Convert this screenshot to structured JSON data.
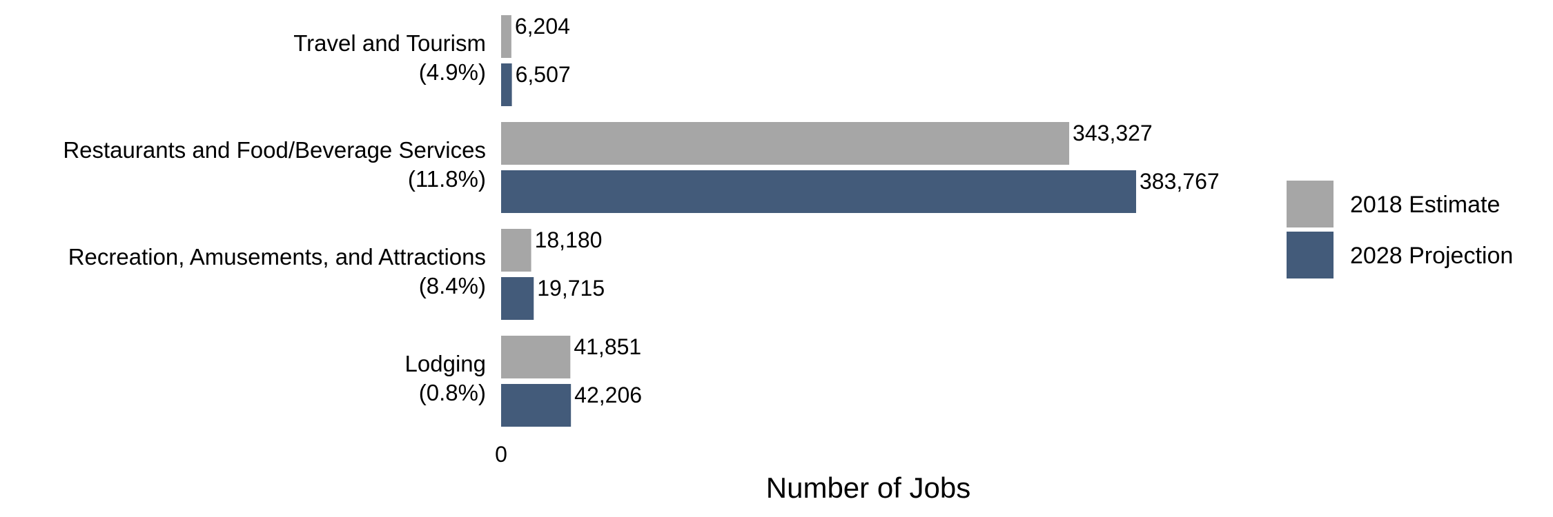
{
  "chart_data": {
    "type": "bar",
    "orientation": "horizontal",
    "categories": [
      [
        "Travel and Tourism",
        "(4.9%)"
      ],
      [
        "Restaurants and Food/Beverage Services",
        "(11.8%)"
      ],
      [
        "Recreation, Amusements, and Attractions",
        "(8.4%)"
      ],
      [
        "Lodging",
        "(0.8%)"
      ]
    ],
    "series": [
      {
        "name": "2018 Estimate",
        "color": "#a6a6a6",
        "values": [
          6204,
          343327,
          18180,
          41851
        ],
        "labels": [
          "6,204",
          "343,327",
          "18,180",
          "41,851"
        ]
      },
      {
        "name": "2028 Projection",
        "color": "#435b7a",
        "values": [
          6507,
          383767,
          19715,
          42206
        ],
        "labels": [
          "6,507",
          "383,767",
          "19,715",
          "42,206"
        ]
      }
    ],
    "xlabel": "Number of Jobs",
    "ylabel": "",
    "xlim": [
      0,
      383767
    ],
    "x_ticks": [
      "0"
    ],
    "grid": false,
    "legend_position": "right"
  }
}
